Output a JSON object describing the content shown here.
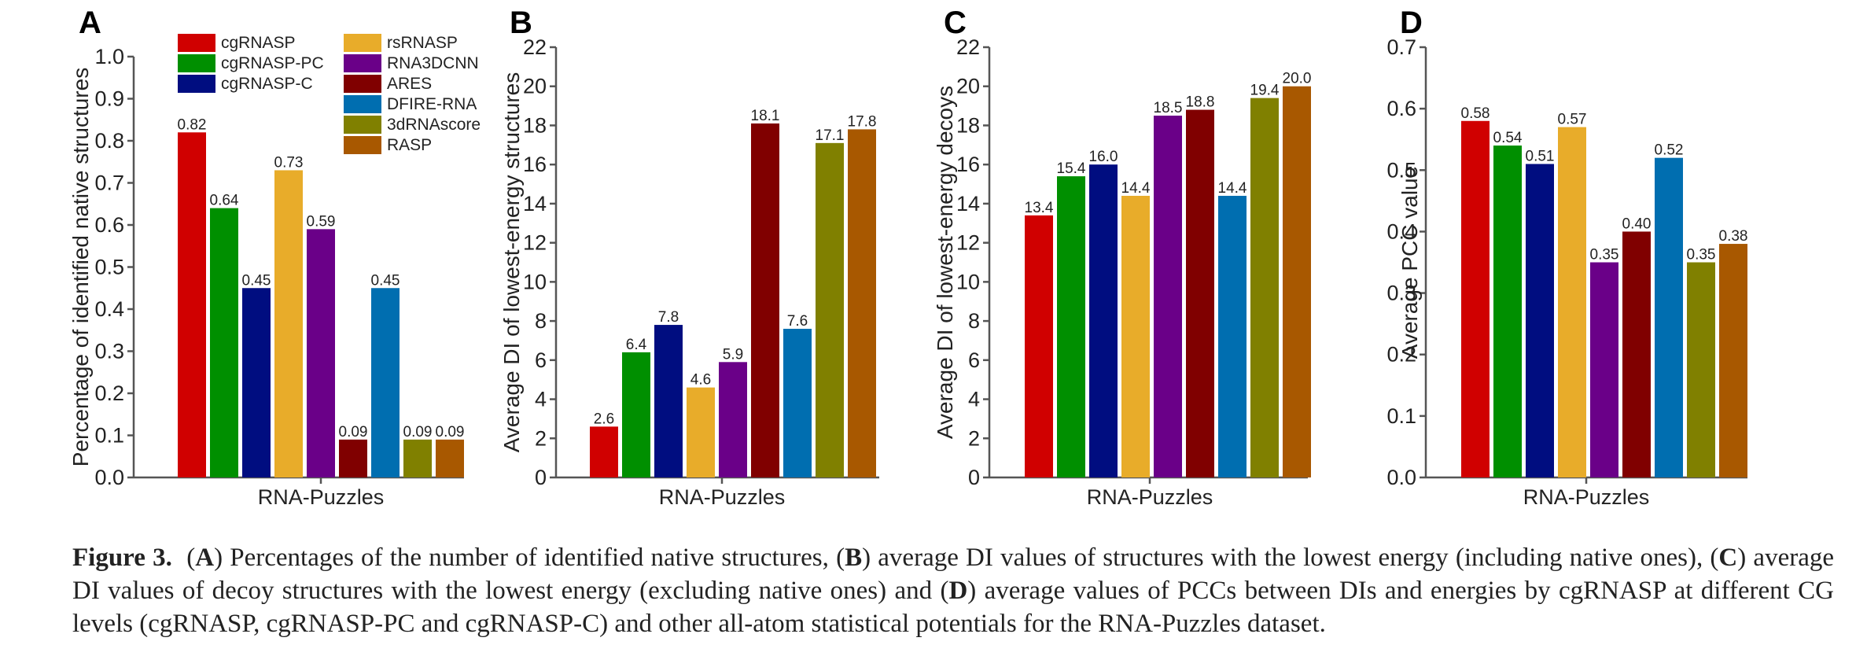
{
  "series_styles": [
    {
      "name": "cgRNASP",
      "color": "#d00000"
    },
    {
      "name": "cgRNASP-PC",
      "color": "#008f00"
    },
    {
      "name": "cgRNASP-C",
      "color": "#000d80"
    },
    {
      "name": "rsRNASP",
      "color": "#e8ac2a"
    },
    {
      "name": "RNA3DCNN",
      "color": "#6a0088"
    },
    {
      "name": "ARES",
      "color": "#800000"
    },
    {
      "name": "DFIRE-RNA",
      "color": "#006eb0"
    },
    {
      "name": "3dRNAscore",
      "color": "#808000"
    },
    {
      "name": "RASP",
      "color": "#a85800"
    }
  ],
  "chart_data": [
    {
      "panel": "A",
      "type": "bar",
      "title": "",
      "xlabel": "RNA-Puzzles",
      "ylabel": "Percentage of identified native structures",
      "categories": [
        "RNA-Puzzles"
      ],
      "ylim": [
        0,
        1.0
      ],
      "yticks": [
        "0.0",
        "0.1",
        "0.2",
        "0.3",
        "0.4",
        "0.5",
        "0.6",
        "0.7",
        "0.8",
        "0.9",
        "1.0"
      ],
      "grid": false,
      "legend": "top-left (two columns)",
      "series": [
        {
          "name": "cgRNASP",
          "values": [
            0.82
          ],
          "label": "0.82"
        },
        {
          "name": "cgRNASP-PC",
          "values": [
            0.64
          ],
          "label": "0.64"
        },
        {
          "name": "cgRNASP-C",
          "values": [
            0.45
          ],
          "label": "0.45"
        },
        {
          "name": "rsRNASP",
          "values": [
            0.73
          ],
          "label": "0.73"
        },
        {
          "name": "RNA3DCNN",
          "values": [
            0.59
          ],
          "label": "0.59"
        },
        {
          "name": "ARES",
          "values": [
            0.09
          ],
          "label": "0.09"
        },
        {
          "name": "DFIRE-RNA",
          "values": [
            0.45
          ],
          "label": "0.45"
        },
        {
          "name": "3dRNAscore",
          "values": [
            0.09
          ],
          "label": "0.09"
        },
        {
          "name": "RASP",
          "values": [
            0.09
          ],
          "label": "0.09"
        }
      ]
    },
    {
      "panel": "B",
      "type": "bar",
      "title": "",
      "xlabel": "RNA-Puzzles",
      "ylabel": "Average DI of  lowest-energy structures",
      "categories": [
        "RNA-Puzzles"
      ],
      "ylim": [
        0,
        22
      ],
      "yticks": [
        "0",
        "2",
        "4",
        "6",
        "8",
        "10",
        "12",
        "14",
        "16",
        "18",
        "20",
        "22"
      ],
      "grid": false,
      "series": [
        {
          "name": "cgRNASP",
          "values": [
            2.6
          ],
          "label": "2.6"
        },
        {
          "name": "cgRNASP-PC",
          "values": [
            6.4
          ],
          "label": "6.4"
        },
        {
          "name": "cgRNASP-C",
          "values": [
            7.8
          ],
          "label": "7.8"
        },
        {
          "name": "rsRNASP",
          "values": [
            4.6
          ],
          "label": "4.6"
        },
        {
          "name": "RNA3DCNN",
          "values": [
            5.9
          ],
          "label": "5.9"
        },
        {
          "name": "ARES",
          "values": [
            18.1
          ],
          "label": "18.1"
        },
        {
          "name": "DFIRE-RNA",
          "values": [
            7.6
          ],
          "label": "7.6"
        },
        {
          "name": "3dRNAscore",
          "values": [
            17.1
          ],
          "label": "17.1"
        },
        {
          "name": "RASP",
          "values": [
            17.8
          ],
          "label": "17.8"
        }
      ]
    },
    {
      "panel": "C",
      "type": "bar",
      "title": "",
      "xlabel": "RNA-Puzzles",
      "ylabel": "Average DI of lowest-energy decoys",
      "categories": [
        "RNA-Puzzles"
      ],
      "ylim": [
        0,
        22
      ],
      "yticks": [
        "0",
        "2",
        "4",
        "6",
        "8",
        "10",
        "12",
        "14",
        "16",
        "18",
        "20",
        "22"
      ],
      "grid": false,
      "series": [
        {
          "name": "cgRNASP",
          "values": [
            13.4
          ],
          "label": "13.4"
        },
        {
          "name": "cgRNASP-PC",
          "values": [
            15.4
          ],
          "label": "15.4"
        },
        {
          "name": "cgRNASP-C",
          "values": [
            16.0
          ],
          "label": "16.0"
        },
        {
          "name": "rsRNASP",
          "values": [
            14.4
          ],
          "label": "14.4"
        },
        {
          "name": "RNA3DCNN",
          "values": [
            18.5
          ],
          "label": "18.5"
        },
        {
          "name": "ARES",
          "values": [
            18.8
          ],
          "label": "18.8"
        },
        {
          "name": "DFIRE-RNA",
          "values": [
            14.4
          ],
          "label": "14.4"
        },
        {
          "name": "3dRNAscore",
          "values": [
            19.4
          ],
          "label": "19.4"
        },
        {
          "name": "RASP",
          "values": [
            20.0
          ],
          "label": "20.0"
        }
      ]
    },
    {
      "panel": "D",
      "type": "bar",
      "title": "",
      "xlabel": "RNA-Puzzles",
      "ylabel": "Average PCC value",
      "categories": [
        "RNA-Puzzles"
      ],
      "ylim": [
        0,
        0.7
      ],
      "yticks": [
        "0.0",
        "0.1",
        "0.2",
        "0.3",
        "0.4",
        "0.5",
        "0.6",
        "0.7"
      ],
      "grid": false,
      "series": [
        {
          "name": "cgRNASP",
          "values": [
            0.58
          ],
          "label": "0.58"
        },
        {
          "name": "cgRNASP-PC",
          "values": [
            0.54
          ],
          "label": "0.54"
        },
        {
          "name": "cgRNASP-C",
          "values": [
            0.51
          ],
          "label": "0.51"
        },
        {
          "name": "rsRNASP",
          "values": [
            0.57
          ],
          "label": "0.57"
        },
        {
          "name": "RNA3DCNN",
          "values": [
            0.35
          ],
          "label": "0.35"
        },
        {
          "name": "ARES",
          "values": [
            0.4
          ],
          "label": "0.40"
        },
        {
          "name": "DFIRE-RNA",
          "values": [
            0.52
          ],
          "label": "0.52"
        },
        {
          "name": "3dRNAscore",
          "values": [
            0.35
          ],
          "label": "0.35"
        },
        {
          "name": "RASP",
          "values": [
            0.38
          ],
          "label": "0.38"
        }
      ]
    }
  ],
  "caption": {
    "figure_label": "Figure 3.",
    "segments": [
      {
        "text": "(",
        "bold": false
      },
      {
        "text": "A",
        "bold": true
      },
      {
        "text": ") Percentages of the number of identified native structures, (",
        "bold": false
      },
      {
        "text": "B",
        "bold": true
      },
      {
        "text": ") average DI values of structures with the lowest energy (including native ones), (",
        "bold": false
      },
      {
        "text": "C",
        "bold": true
      },
      {
        "text": ") average DI values of decoy structures with the lowest energy (excluding native ones) and (",
        "bold": false
      },
      {
        "text": "D",
        "bold": true
      },
      {
        "text": ") average values of PCCs between DIs and energies by cgRNASP at different CG levels (cgRNASP, cgRNASP-PC and cgRNASP-C) and other all-atom statistical potentials for the RNA-Puzzles dataset.",
        "bold": false
      }
    ]
  }
}
